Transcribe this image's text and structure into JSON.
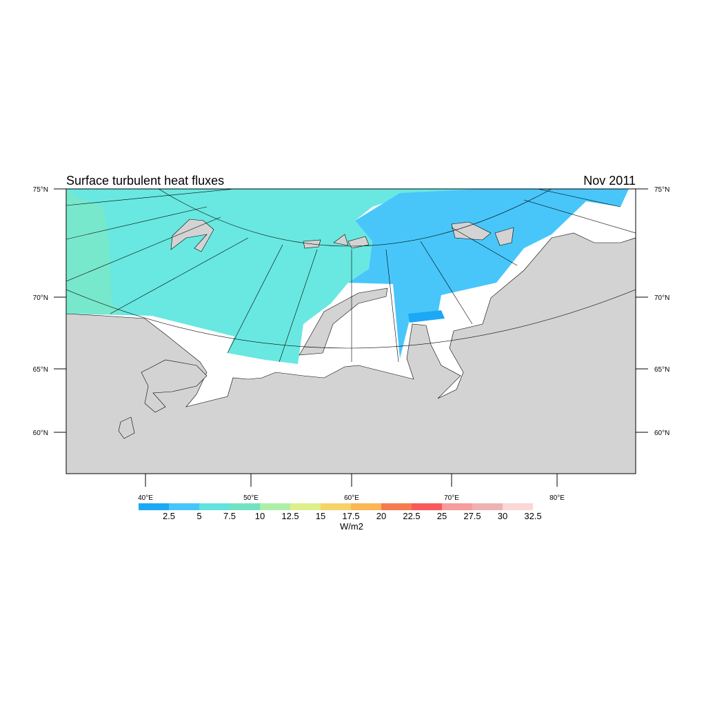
{
  "header": {
    "left_title": "Surface turbulent heat fluxes",
    "right_title": "Nov 2011"
  },
  "lat_labels": [
    "75°N",
    "70°N",
    "65°N",
    "60°N"
  ],
  "lon_labels": [
    "40°E",
    "50°E",
    "60°E",
    "70°E",
    "80°E"
  ],
  "colorbar": {
    "levels": [
      2.5,
      5,
      7.5,
      10,
      12.5,
      15,
      17.5,
      20,
      22.5,
      25,
      27.5,
      30,
      32.5
    ],
    "colors": [
      "#1ba9f6",
      "#48c6fa",
      "#62e3df",
      "#72e2c2",
      "#aeefa8",
      "#dcef8c",
      "#f6d26b",
      "#fbb755",
      "#f57b4f",
      "#f8595b",
      "#f79c9c",
      "#efb2b2",
      "#fbd7d7"
    ],
    "unit": "W/m2"
  }
}
